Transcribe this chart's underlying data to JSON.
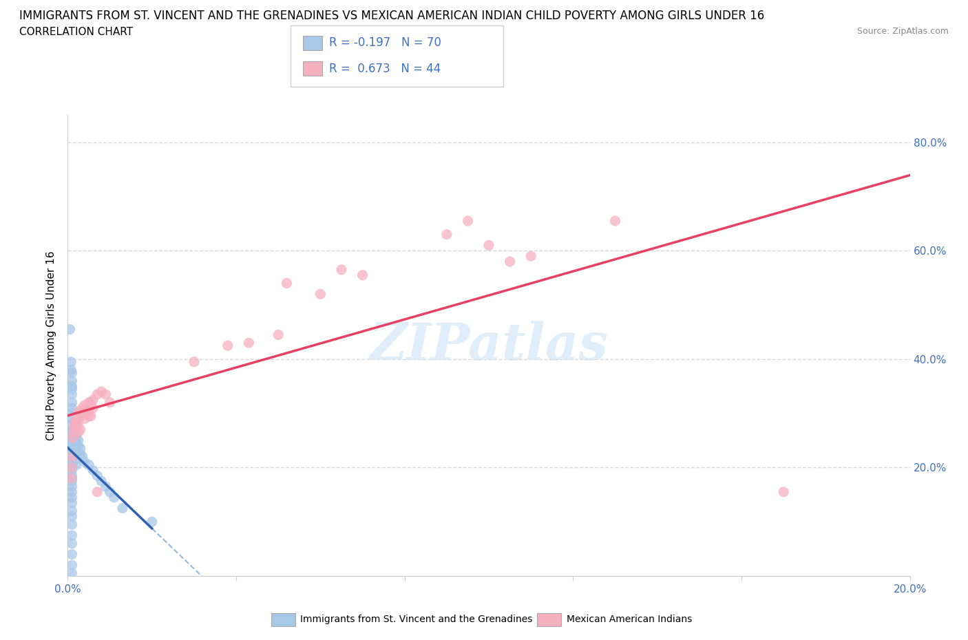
{
  "title": "IMMIGRANTS FROM ST. VINCENT AND THE GRENADINES VS MEXICAN AMERICAN INDIAN CHILD POVERTY AMONG GIRLS UNDER 16",
  "subtitle": "CORRELATION CHART",
  "source": "Source: ZipAtlas.com",
  "ylabel": "Child Poverty Among Girls Under 16",
  "xlim": [
    0.0,
    0.2
  ],
  "ylim": [
    0.0,
    0.85
  ],
  "blue_color": "#a8c8e8",
  "pink_color": "#f5b0c0",
  "blue_line_color": "#3060b0",
  "pink_line_color": "#e84060",
  "dashed_line_color": "#90b8d8",
  "label_color": "#4070c0",
  "legend_label1": "Immigrants from St. Vincent and the Grenadines",
  "legend_label2": "Mexican American Indians",
  "watermark": "ZIPatlas",
  "grid_color": "#d8d8d8",
  "blue_scatter": [
    [
      0.0005,
      0.455
    ],
    [
      0.0008,
      0.395
    ],
    [
      0.0008,
      0.38
    ],
    [
      0.001,
      0.375
    ],
    [
      0.001,
      0.36
    ],
    [
      0.001,
      0.35
    ],
    [
      0.001,
      0.345
    ],
    [
      0.001,
      0.335
    ],
    [
      0.001,
      0.32
    ],
    [
      0.001,
      0.31
    ],
    [
      0.001,
      0.3
    ],
    [
      0.001,
      0.29
    ],
    [
      0.001,
      0.28
    ],
    [
      0.001,
      0.27
    ],
    [
      0.001,
      0.265
    ],
    [
      0.001,
      0.26
    ],
    [
      0.001,
      0.255
    ],
    [
      0.001,
      0.25
    ],
    [
      0.001,
      0.245
    ],
    [
      0.001,
      0.24
    ],
    [
      0.001,
      0.235
    ],
    [
      0.001,
      0.23
    ],
    [
      0.001,
      0.225
    ],
    [
      0.001,
      0.22
    ],
    [
      0.001,
      0.215
    ],
    [
      0.001,
      0.21
    ],
    [
      0.001,
      0.205
    ],
    [
      0.001,
      0.2
    ],
    [
      0.001,
      0.195
    ],
    [
      0.001,
      0.185
    ],
    [
      0.001,
      0.18
    ],
    [
      0.001,
      0.175
    ],
    [
      0.001,
      0.165
    ],
    [
      0.001,
      0.155
    ],
    [
      0.001,
      0.145
    ],
    [
      0.001,
      0.135
    ],
    [
      0.001,
      0.12
    ],
    [
      0.001,
      0.11
    ],
    [
      0.001,
      0.095
    ],
    [
      0.001,
      0.075
    ],
    [
      0.001,
      0.06
    ],
    [
      0.001,
      0.04
    ],
    [
      0.001,
      0.02
    ],
    [
      0.001,
      0.005
    ],
    [
      0.0015,
      0.245
    ],
    [
      0.0015,
      0.235
    ],
    [
      0.0015,
      0.225
    ],
    [
      0.002,
      0.26
    ],
    [
      0.002,
      0.25
    ],
    [
      0.002,
      0.245
    ],
    [
      0.002,
      0.24
    ],
    [
      0.002,
      0.23
    ],
    [
      0.002,
      0.225
    ],
    [
      0.002,
      0.215
    ],
    [
      0.002,
      0.205
    ],
    [
      0.0025,
      0.25
    ],
    [
      0.0025,
      0.24
    ],
    [
      0.003,
      0.235
    ],
    [
      0.003,
      0.225
    ],
    [
      0.0035,
      0.22
    ],
    [
      0.004,
      0.21
    ],
    [
      0.005,
      0.205
    ],
    [
      0.006,
      0.195
    ],
    [
      0.007,
      0.185
    ],
    [
      0.008,
      0.175
    ],
    [
      0.009,
      0.165
    ],
    [
      0.01,
      0.155
    ],
    [
      0.011,
      0.145
    ],
    [
      0.013,
      0.125
    ],
    [
      0.02,
      0.1
    ]
  ],
  "pink_scatter": [
    [
      0.0008,
      0.18
    ],
    [
      0.001,
      0.22
    ],
    [
      0.001,
      0.2
    ],
    [
      0.0012,
      0.255
    ],
    [
      0.0015,
      0.275
    ],
    [
      0.0015,
      0.265
    ],
    [
      0.0018,
      0.285
    ],
    [
      0.002,
      0.29
    ],
    [
      0.002,
      0.28
    ],
    [
      0.0025,
      0.3
    ],
    [
      0.0025,
      0.29
    ],
    [
      0.0025,
      0.28
    ],
    [
      0.0025,
      0.265
    ],
    [
      0.003,
      0.305
    ],
    [
      0.003,
      0.295
    ],
    [
      0.003,
      0.27
    ],
    [
      0.0035,
      0.31
    ],
    [
      0.0035,
      0.3
    ],
    [
      0.004,
      0.315
    ],
    [
      0.004,
      0.3
    ],
    [
      0.004,
      0.29
    ],
    [
      0.0045,
      0.305
    ],
    [
      0.005,
      0.32
    ],
    [
      0.005,
      0.305
    ],
    [
      0.005,
      0.295
    ],
    [
      0.0055,
      0.32
    ],
    [
      0.0055,
      0.295
    ],
    [
      0.006,
      0.325
    ],
    [
      0.006,
      0.31
    ],
    [
      0.007,
      0.335
    ],
    [
      0.007,
      0.155
    ],
    [
      0.008,
      0.34
    ],
    [
      0.009,
      0.335
    ],
    [
      0.01,
      0.32
    ],
    [
      0.03,
      0.395
    ],
    [
      0.038,
      0.425
    ],
    [
      0.043,
      0.43
    ],
    [
      0.05,
      0.445
    ],
    [
      0.052,
      0.54
    ],
    [
      0.06,
      0.52
    ],
    [
      0.065,
      0.565
    ],
    [
      0.07,
      0.555
    ],
    [
      0.09,
      0.63
    ],
    [
      0.095,
      0.655
    ],
    [
      0.1,
      0.61
    ],
    [
      0.105,
      0.58
    ],
    [
      0.11,
      0.59
    ],
    [
      0.13,
      0.655
    ],
    [
      0.17,
      0.155
    ]
  ]
}
